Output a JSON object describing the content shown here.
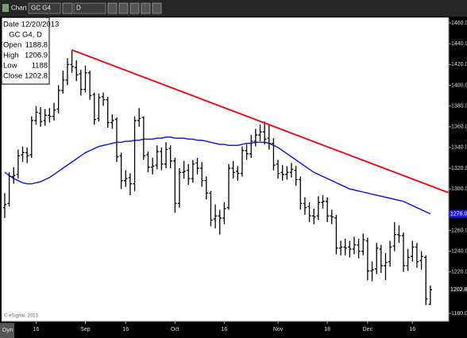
{
  "toolbar": {
    "window": "Chart",
    "symbol": "GC G4",
    "interval": "D"
  },
  "status": "Dyn",
  "copyright": "© eSignal, 2013",
  "info": {
    "date": "Date 12/20/2013",
    "title": "GC G4, D",
    "open": "Open",
    "high": "High",
    "low": "Low",
    "close": "Close"
  },
  "chart_data": {
    "type": "ohlc",
    "x": [
      0,
      1,
      2,
      3,
      4,
      5,
      6,
      7,
      8,
      9,
      10,
      11,
      12,
      13,
      14,
      15,
      16,
      17,
      18,
      19,
      20,
      21,
      22,
      23,
      24,
      25,
      26,
      27,
      28,
      29,
      30,
      31,
      32,
      33,
      34,
      35,
      36,
      37,
      38,
      39,
      40,
      41,
      42,
      43,
      44,
      45,
      46,
      47,
      48,
      49,
      50,
      51,
      52,
      53,
      54,
      55,
      56,
      57,
      58,
      59,
      60,
      61,
      62,
      63,
      64,
      65,
      66,
      67,
      68,
      69,
      70,
      71,
      72,
      73,
      74,
      75,
      76,
      77,
      78,
      79,
      80,
      81,
      82,
      83,
      84,
      85,
      86,
      87,
      88,
      89,
      90,
      91,
      92,
      93,
      94,
      95
    ],
    "xlim": [
      -0.7,
      99.1
    ],
    "xticks": [
      {
        "value": 7,
        "label": "16"
      },
      {
        "value": 18,
        "label": "Sep"
      },
      {
        "value": 27,
        "label": "16"
      },
      {
        "value": 38,
        "label": "Oct"
      },
      {
        "value": 49,
        "label": "16"
      },
      {
        "value": 61,
        "label": "Nov"
      },
      {
        "value": 72,
        "label": "18"
      },
      {
        "value": 81,
        "label": "Dec"
      },
      {
        "value": 91,
        "label": "16"
      }
    ],
    "ylim": [
      1180,
      1460
    ],
    "yticks": [
      {
        "value": 1460,
        "label": "1460.0"
      },
      {
        "value": 1440,
        "label": "1440.0"
      },
      {
        "value": 1420,
        "label": "1420.0"
      },
      {
        "value": 1400,
        "label": "1400.0"
      },
      {
        "value": 1380,
        "label": "1380.0"
      },
      {
        "value": 1360,
        "label": "1360.0"
      },
      {
        "value": 1340,
        "label": "1340.0"
      },
      {
        "value": 1320,
        "label": "1320.0"
      },
      {
        "value": 1300,
        "label": "1300.0"
      },
      {
        "value": 1260,
        "label": "1260.0"
      },
      {
        "value": 1240,
        "label": "1240.0"
      },
      {
        "value": 1220,
        "label": "1220.0"
      },
      {
        "value": 1180,
        "label": "1180.0"
      }
    ],
    "ymarkers": [
      {
        "value": 1276,
        "label": "1276.0",
        "color": "#1c1cd8"
      },
      {
        "value": 1202.8,
        "label": "1202.8",
        "color": "#111111"
      }
    ],
    "grid": false,
    "series": [
      {
        "kind": "ohlc",
        "color": "#000000",
        "open": [
          1282,
          1286,
          1312,
          1314,
          1333,
          1335,
          1333,
          1366,
          1373,
          1366,
          1371,
          1370,
          1377,
          1395,
          1405,
          1420,
          1417,
          1411,
          1396,
          1412,
          1391,
          1368,
          1389,
          1386,
          1364,
          1367,
          1332,
          1308,
          1311,
          1305,
          1366,
          1369,
          1333,
          1321,
          1323,
          1336,
          1324,
          1339,
          1327,
          1286,
          1316,
          1318,
          1310,
          1325,
          1320,
          1308,
          1296,
          1271,
          1274,
          1272,
          1282,
          1320,
          1317,
          1315,
          1337,
          1334,
          1346,
          1352,
          1355,
          1349,
          1344,
          1324,
          1316,
          1314,
          1316,
          1318,
          1309,
          1286,
          1283,
          1274,
          1274,
          1287,
          1288,
          1274,
          1272,
          1243,
          1244,
          1244,
          1242,
          1246,
          1240,
          1250,
          1221,
          1223,
          1242,
          1226,
          1230,
          1245,
          1256,
          1255,
          1226,
          1235,
          1244,
          1231,
          1234,
          1188.8
        ],
        "high": [
          1296,
          1316,
          1321,
          1338,
          1341,
          1340,
          1370,
          1380,
          1379,
          1377,
          1378,
          1383,
          1400,
          1414,
          1426,
          1434,
          1424,
          1415,
          1419,
          1414,
          1393,
          1392,
          1393,
          1389,
          1372,
          1369,
          1335,
          1318,
          1315,
          1370,
          1378,
          1370,
          1336,
          1330,
          1342,
          1340,
          1345,
          1342,
          1330,
          1320,
          1327,
          1324,
          1328,
          1330,
          1326,
          1312,
          1298,
          1285,
          1280,
          1287,
          1324,
          1327,
          1322,
          1341,
          1343,
          1352,
          1358,
          1362,
          1365,
          1362,
          1349,
          1328,
          1323,
          1322,
          1325,
          1322,
          1312,
          1292,
          1287,
          1281,
          1293,
          1294,
          1292,
          1280,
          1275,
          1250,
          1252,
          1250,
          1254,
          1252,
          1257,
          1253,
          1230,
          1248,
          1246,
          1238,
          1250,
          1268,
          1265,
          1258,
          1242,
          1250,
          1248,
          1240,
          1236,
          1206.9
        ],
        "low": [
          1272,
          1283,
          1305,
          1310,
          1326,
          1325,
          1330,
          1362,
          1360,
          1361,
          1364,
          1366,
          1373,
          1392,
          1400,
          1412,
          1404,
          1390,
          1393,
          1386,
          1362,
          1365,
          1380,
          1359,
          1358,
          1326,
          1300,
          1302,
          1294,
          1298,
          1360,
          1328,
          1316,
          1314,
          1319,
          1318,
          1320,
          1320,
          1277,
          1282,
          1310,
          1304,
          1306,
          1314,
          1302,
          1290,
          1264,
          1262,
          1256,
          1266,
          1280,
          1310,
          1308,
          1312,
          1328,
          1330,
          1341,
          1346,
          1343,
          1338,
          1318,
          1310,
          1308,
          1309,
          1311,
          1303,
          1280,
          1275,
          1268,
          1266,
          1270,
          1281,
          1268,
          1266,
          1237,
          1236,
          1236,
          1234,
          1237,
          1233,
          1236,
          1212,
          1211,
          1218,
          1219,
          1212,
          1225,
          1240,
          1248,
          1220,
          1221,
          1230,
          1224,
          1222,
          1188,
          1188.0
        ],
        "close": [
          1285,
          1312,
          1313,
          1332,
          1335,
          1332,
          1366,
          1374,
          1365,
          1371,
          1370,
          1376,
          1395,
          1405,
          1420,
          1418,
          1410,
          1396,
          1412,
          1390,
          1367,
          1388,
          1386,
          1364,
          1366,
          1331,
          1308,
          1310,
          1305,
          1366,
          1368,
          1332,
          1321,
          1322,
          1336,
          1324,
          1338,
          1327,
          1286,
          1316,
          1317,
          1310,
          1324,
          1320,
          1308,
          1296,
          1270,
          1274,
          1272,
          1281,
          1320,
          1316,
          1315,
          1337,
          1334,
          1346,
          1352,
          1355,
          1348,
          1344,
          1323,
          1315,
          1314,
          1316,
          1319,
          1309,
          1286,
          1282,
          1274,
          1273,
          1287,
          1288,
          1274,
          1273,
          1243,
          1244,
          1243,
          1242,
          1246,
          1240,
          1251,
          1221,
          1222,
          1243,
          1226,
          1229,
          1244,
          1256,
          1255,
          1226,
          1234,
          1244,
          1230,
          1235,
          1194,
          1202.8
        ]
      },
      {
        "kind": "line",
        "color": "#1c1cd8",
        "values": [
          1316,
          1313,
          1310,
          1308,
          1306,
          1305,
          1305,
          1306,
          1307,
          1309,
          1311,
          1314,
          1317,
          1320,
          1323,
          1326,
          1329,
          1332,
          1335,
          1337,
          1339,
          1341,
          1342,
          1343,
          1344,
          1345,
          1345,
          1346,
          1346,
          1347,
          1347,
          1348,
          1348,
          1348,
          1349,
          1349,
          1350,
          1350,
          1349,
          1349,
          1349,
          1348,
          1348,
          1347,
          1347,
          1346,
          1345,
          1344,
          1343,
          1343,
          1342,
          1342,
          1342,
          1343,
          1344,
          1344,
          1345,
          1345,
          1345,
          1344,
          1342,
          1340,
          1337,
          1334,
          1331,
          1328,
          1325,
          1322,
          1319,
          1316,
          1314,
          1312,
          1310,
          1308,
          1306,
          1304,
          1302,
          1300,
          1299,
          1298,
          1297,
          1296,
          1295,
          1294,
          1293,
          1292,
          1291,
          1290,
          1289,
          1288,
          1286,
          1284,
          1282,
          1280,
          1278,
          1276
        ]
      }
    ],
    "trendline": {
      "x": [
        15,
        99
      ],
      "y": [
        1434,
        1296.5
      ],
      "color": "#e8141c"
    }
  }
}
